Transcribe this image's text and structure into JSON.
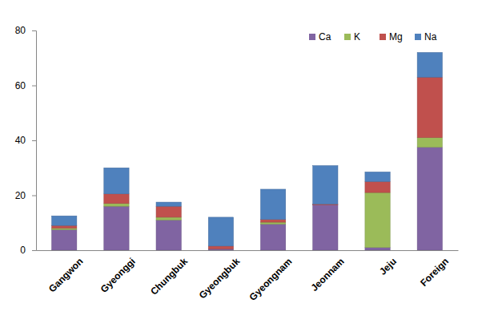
{
  "chart_data": {
    "type": "bar",
    "stacked": true,
    "legend": "top right",
    "grid": false,
    "categories": [
      "Gangwon",
      "Gyeonggi",
      "Chungbuk",
      "Gyeongbuk",
      "Gyeongnam",
      "Jeonnam",
      "Jeju",
      "Foreign"
    ],
    "series": [
      {
        "name": "Ca",
        "color": "#8064a2",
        "values": [
          7.5,
          16,
          11,
          0.5,
          9.5,
          16.5,
          1,
          37.5
        ]
      },
      {
        "name": "K",
        "color": "#9bbb59",
        "values": [
          0.5,
          1,
          1,
          0,
          0.7,
          0,
          20,
          3.5
        ]
      },
      {
        "name": "Mg",
        "color": "#c0504d",
        "values": [
          1,
          3.5,
          4,
          1,
          1,
          0.3,
          4,
          22
        ]
      },
      {
        "name": "Na",
        "color": "#4f81bd",
        "values": [
          3.5,
          9.5,
          1.5,
          10.5,
          11,
          14,
          3.5,
          9
        ]
      }
    ],
    "ylim": [
      0,
      80
    ],
    "yticks": [
      0,
      20,
      40,
      60,
      80
    ]
  }
}
